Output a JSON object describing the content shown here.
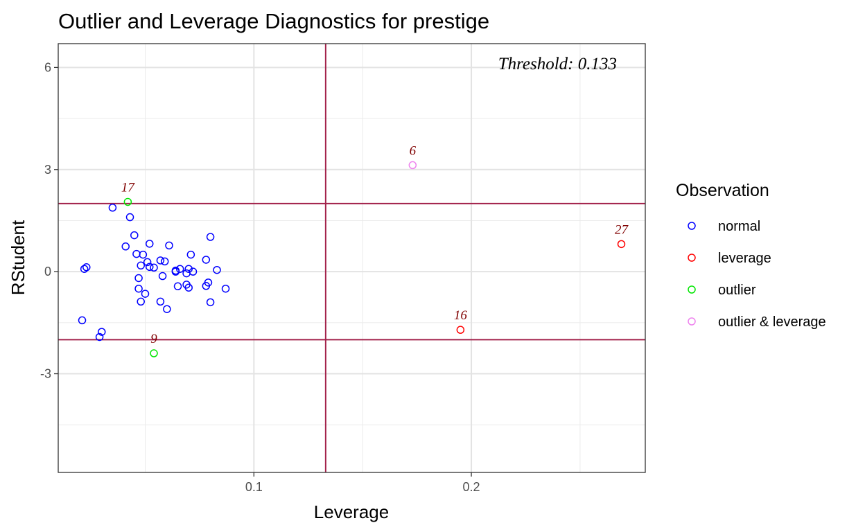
{
  "chart_data": {
    "type": "scatter",
    "title": "Outlier and Leverage Diagnostics for prestige",
    "xlabel": "Leverage",
    "ylabel": "RStudent",
    "xlim": [
      0.01,
      0.28
    ],
    "ylim": [
      -5.9,
      6.7
    ],
    "x_ticks": [
      0.1,
      0.2
    ],
    "x_tick_labels": [
      "0.1",
      "0.2"
    ],
    "y_ticks": [
      -3,
      0,
      3,
      6
    ],
    "y_tick_labels": [
      "-3",
      "0",
      "3",
      "6"
    ],
    "grid": true,
    "legend_position": "right",
    "legend_title": "Observation",
    "threshold_leverage": 0.133,
    "threshold_rstudent": [
      -2,
      2
    ],
    "threshold_text": "Threshold: 0.133",
    "threshold_line_color": "#a2214a",
    "label_color": "#800000",
    "series": [
      {
        "name": "normal",
        "color": "#0000ff",
        "x": [
          0.021,
          0.022,
          0.023,
          0.029,
          0.03,
          0.035,
          0.041,
          0.043,
          0.045,
          0.046,
          0.047,
          0.047,
          0.048,
          0.048,
          0.049,
          0.05,
          0.051,
          0.052,
          0.052,
          0.054,
          0.057,
          0.057,
          0.058,
          0.059,
          0.06,
          0.061,
          0.064,
          0.064,
          0.065,
          0.066,
          0.069,
          0.069,
          0.07,
          0.07,
          0.071,
          0.072,
          0.078,
          0.078,
          0.079,
          0.08,
          0.08,
          0.083,
          0.087
        ],
        "y": [
          -1.43,
          0.08,
          0.13,
          -1.92,
          -1.77,
          1.88,
          0.74,
          1.6,
          1.07,
          0.52,
          -0.19,
          -0.5,
          -0.88,
          0.18,
          0.5,
          -0.65,
          0.28,
          0.82,
          0.14,
          0.12,
          0.33,
          -0.88,
          -0.13,
          0.3,
          -1.1,
          0.77,
          0.03,
          0.0,
          -0.43,
          0.08,
          -0.05,
          -0.38,
          -0.47,
          0.08,
          0.5,
          0.0,
          0.35,
          -0.42,
          -0.32,
          -0.9,
          1.02,
          0.05,
          -0.5
        ],
        "labels": []
      },
      {
        "name": "leverage",
        "color": "#ff0000",
        "x": [
          0.195,
          0.269
        ],
        "y": [
          -1.71,
          0.81
        ],
        "labels": [
          "16",
          "27"
        ]
      },
      {
        "name": "outlier",
        "color": "#00e600",
        "x": [
          0.042,
          0.054
        ],
        "y": [
          2.05,
          -2.4
        ],
        "labels": [
          "17",
          "9"
        ]
      },
      {
        "name": "outlier & leverage",
        "color": "#ee82ee",
        "x": [
          0.173
        ],
        "y": [
          3.13
        ],
        "labels": [
          "6"
        ]
      }
    ]
  }
}
